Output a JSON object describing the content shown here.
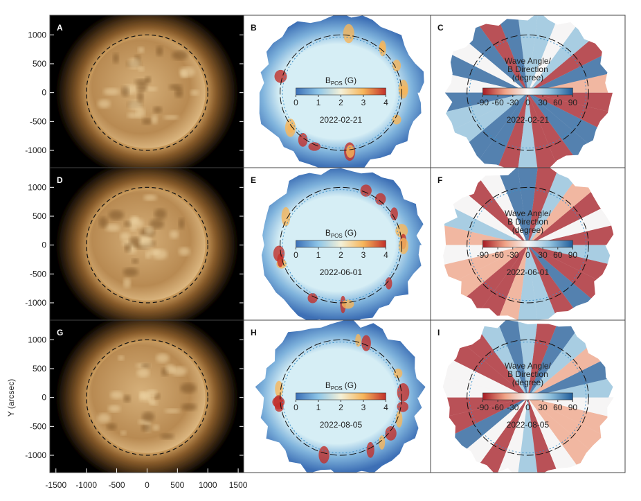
{
  "chart_data": [
    {
      "type": "image",
      "label": "A",
      "xlim": [
        -1600,
        1590
      ],
      "ylim": [
        -1300,
        1340
      ],
      "yticks": [
        1000,
        500,
        0,
        -500,
        -1000
      ]
    },
    {
      "type": "image",
      "label": "B",
      "colorbar": {
        "title": "B",
        "subscript": "POS",
        "unit": "(G)",
        "lim": [
          0,
          4
        ],
        "ticks": [
          0,
          1,
          2,
          3,
          4
        ],
        "colors": [
          "#3b6fb6",
          "#8ec6e8",
          "#f4f1d8",
          "#f6b55a",
          "#c2302a"
        ]
      },
      "date": "2022-02-21"
    },
    {
      "type": "image",
      "label": "C",
      "colorbar": {
        "title": [
          "Wave Angle/",
          "B Direction",
          "(degree)"
        ],
        "lim": [
          -90,
          90
        ],
        "ticks": [
          -90,
          -60,
          -30,
          0,
          30,
          60,
          90
        ],
        "colors": [
          "#a51c24",
          "#f0a487",
          "#f7f7f7",
          "#8fc1de",
          "#1f5c99"
        ]
      },
      "date": "2022-02-21"
    },
    {
      "type": "image",
      "label": "D",
      "xlim": [
        -1600,
        1590
      ],
      "ylim": [
        -1300,
        1340
      ],
      "yticks": [
        1000,
        500,
        0,
        -500,
        -1000
      ]
    },
    {
      "type": "image",
      "label": "E",
      "colorbar": {
        "title": "B",
        "subscript": "POS",
        "unit": "(G)",
        "lim": [
          0,
          4
        ],
        "ticks": [
          0,
          1,
          2,
          3,
          4
        ],
        "colors": [
          "#3b6fb6",
          "#8ec6e8",
          "#f4f1d8",
          "#f6b55a",
          "#c2302a"
        ]
      },
      "date": "2022-06-01"
    },
    {
      "type": "image",
      "label": "F",
      "colorbar": {
        "title": [
          "Wave Angle/",
          "B Direction",
          "(degree)"
        ],
        "lim": [
          -90,
          90
        ],
        "ticks": [
          -90,
          -60,
          -30,
          0,
          30,
          60,
          90
        ],
        "colors": [
          "#a51c24",
          "#f0a487",
          "#f7f7f7",
          "#8fc1de",
          "#1f5c99"
        ]
      },
      "date": "2022-06-01"
    },
    {
      "type": "image",
      "label": "G",
      "xlim": [
        -1600,
        1590
      ],
      "ylim": [
        -1300,
        1340
      ],
      "yticks": [
        1000,
        500,
        0,
        -500,
        -1000
      ],
      "xticks": [
        -1500,
        -1000,
        -500,
        0,
        500,
        1000,
        1500
      ],
      "ylabel": "Y (arcsec)"
    },
    {
      "type": "image",
      "label": "H",
      "colorbar": {
        "title": "B",
        "subscript": "POS",
        "unit": "(G)",
        "lim": [
          0,
          4
        ],
        "ticks": [
          0,
          1,
          2,
          3,
          4
        ],
        "colors": [
          "#3b6fb6",
          "#8ec6e8",
          "#f4f1d8",
          "#f6b55a",
          "#c2302a"
        ]
      },
      "date": "2022-08-05"
    },
    {
      "type": "image",
      "label": "I",
      "colorbar": {
        "title": [
          "Wave Angle/",
          "B Direction",
          "(degree)"
        ],
        "lim": [
          -90,
          90
        ],
        "ticks": [
          -90,
          -60,
          -30,
          0,
          30,
          60,
          90
        ],
        "colors": [
          "#a51c24",
          "#f0a487",
          "#f7f7f7",
          "#8fc1de",
          "#1f5c99"
        ]
      },
      "date": "2022-08-05"
    }
  ]
}
